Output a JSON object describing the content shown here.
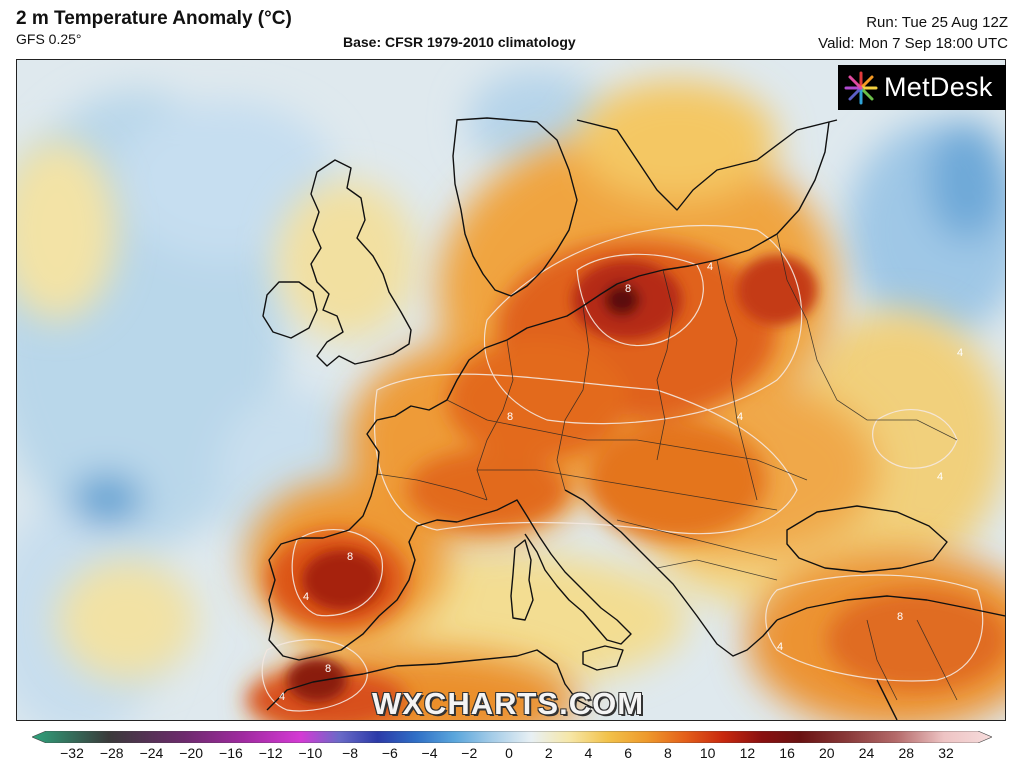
{
  "header": {
    "title": "2 m Temperature Anomaly (°C)",
    "model": "GFS 0.25°",
    "base": "Base: CFSR 1979-2010 climatology",
    "run": "Run: Tue 25 Aug 12Z",
    "valid": "Valid: Mon 7 Sep 18:00 UTC"
  },
  "logo": {
    "text": "MetDesk",
    "icon": "metdesk-starburst-icon"
  },
  "watermark": "WXCHARTS.COM",
  "legend": {
    "ticks": [
      "−32",
      "−28",
      "−24",
      "−20",
      "−16",
      "−12",
      "−10",
      "−8",
      "−6",
      "−4",
      "−2",
      "0",
      "2",
      "4",
      "6",
      "8",
      "10",
      "12",
      "16",
      "20",
      "24",
      "28",
      "32"
    ],
    "colors": [
      "#2fa37c",
      "#3a3a3a",
      "#6e2a6e",
      "#a02aa0",
      "#d43ad4",
      "#6a6ac8",
      "#2b3aa8",
      "#2f6fc6",
      "#5aa6dc",
      "#a6cde8",
      "#e8f0f4",
      "#f6e7a8",
      "#f2c24a",
      "#ee9a2c",
      "#e4601a",
      "#c8280e",
      "#8a1010",
      "#6a1212",
      "#8a3a3a",
      "#b46a6a",
      "#d49a9a",
      "#eec4c4",
      "#f6dcdc"
    ]
  },
  "map": {
    "contour_labels": [
      "4",
      "8",
      "4",
      "8",
      "4",
      "8",
      "4",
      "8",
      "4",
      "4",
      "4",
      "8"
    ]
  }
}
